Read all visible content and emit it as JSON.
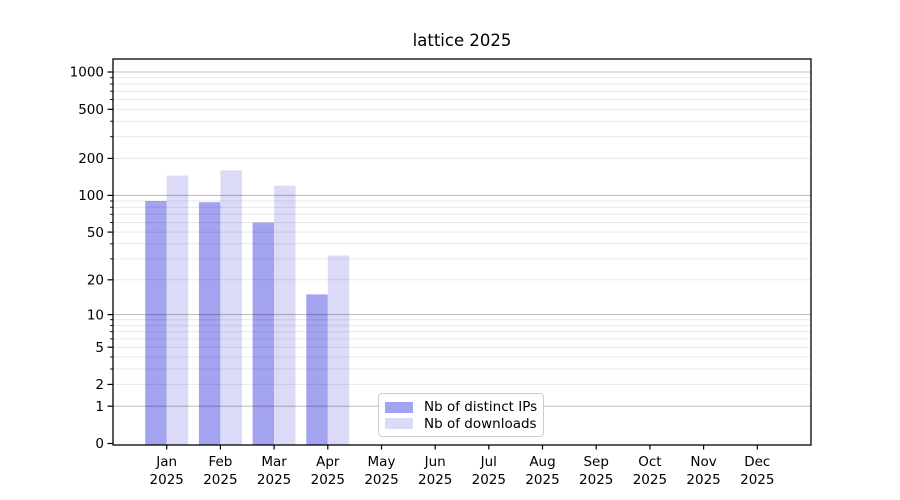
{
  "chart_data": {
    "type": "bar",
    "title": "lattice 2025",
    "categories": [
      "Jan",
      "Feb",
      "Mar",
      "Apr",
      "May",
      "Jun",
      "Jul",
      "Aug",
      "Sep",
      "Oct",
      "Nov",
      "Dec"
    ],
    "x_tick_second_line": "2025",
    "series": [
      {
        "name": "Nb of distinct IPs",
        "color": "#a3a3f0",
        "values": [
          90,
          88,
          60,
          15,
          null,
          null,
          null,
          null,
          null,
          null,
          null,
          null
        ]
      },
      {
        "name": "Nb of downloads",
        "color": "#dbdbf8",
        "values": [
          145,
          160,
          120,
          32,
          null,
          null,
          null,
          null,
          null,
          null,
          null,
          null
        ]
      }
    ],
    "y_scale": "log1p",
    "y_ticks": [
      0,
      1,
      2,
      5,
      10,
      20,
      50,
      100,
      200,
      500,
      1000
    ],
    "y_major_ticks": [
      1,
      10,
      100,
      1000
    ],
    "ylim": [
      0,
      1275
    ],
    "xlabel": "",
    "ylabel": "",
    "grid": true,
    "legend_position": "lower-center",
    "colors": {
      "spine": "#000000",
      "major_grid": "rgba(0,0,0,0.24)",
      "minor_grid": "rgba(0,0,0,0.085)",
      "background": "#ffffff"
    }
  }
}
